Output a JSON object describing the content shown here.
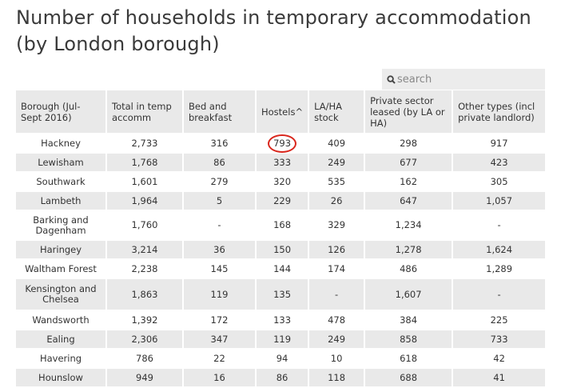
{
  "title": "Number of households in temporary accommodation (by London borough)",
  "search": {
    "placeholder": "search",
    "icon": "search-icon"
  },
  "table": {
    "headers": [
      "Borough (Jul-Sept 2016)",
      "Total in temp accomm",
      "Bed and breakfast",
      "Hostels^",
      "LA/HA stock",
      "Private sector leased (by LA or HA)",
      "Other types (incl private landlord)"
    ],
    "sorted_column": "Hostels",
    "highlighted_cell": {
      "row": "Hackney",
      "column": "Hostels",
      "color": "#d9261c"
    },
    "rows": [
      [
        "Hackney",
        "2,733",
        "316",
        "793",
        "409",
        "298",
        "917"
      ],
      [
        "Lewisham",
        "1,768",
        "86",
        "333",
        "249",
        "677",
        "423"
      ],
      [
        "Southwark",
        "1,601",
        "279",
        "320",
        "535",
        "162",
        "305"
      ],
      [
        "Lambeth",
        "1,964",
        "5",
        "229",
        "26",
        "647",
        "1,057"
      ],
      [
        "Barking and Dagenham",
        "1,760",
        "-",
        "168",
        "329",
        "1,234",
        "-"
      ],
      [
        "Haringey",
        "3,214",
        "36",
        "150",
        "126",
        "1,278",
        "1,624"
      ],
      [
        "Waltham Forest",
        "2,238",
        "145",
        "144",
        "174",
        "486",
        "1,289"
      ],
      [
        "Kensington and Chelsea",
        "1,863",
        "119",
        "135",
        "-",
        "1,607",
        "-"
      ],
      [
        "Wandsworth",
        "1,392",
        "172",
        "133",
        "478",
        "384",
        "225"
      ],
      [
        "Ealing",
        "2,306",
        "347",
        "119",
        "249",
        "858",
        "733"
      ],
      [
        "Havering",
        "786",
        "22",
        "94",
        "10",
        "618",
        "42"
      ],
      [
        "Hounslow",
        "949",
        "16",
        "86",
        "118",
        "688",
        "41"
      ]
    ]
  }
}
